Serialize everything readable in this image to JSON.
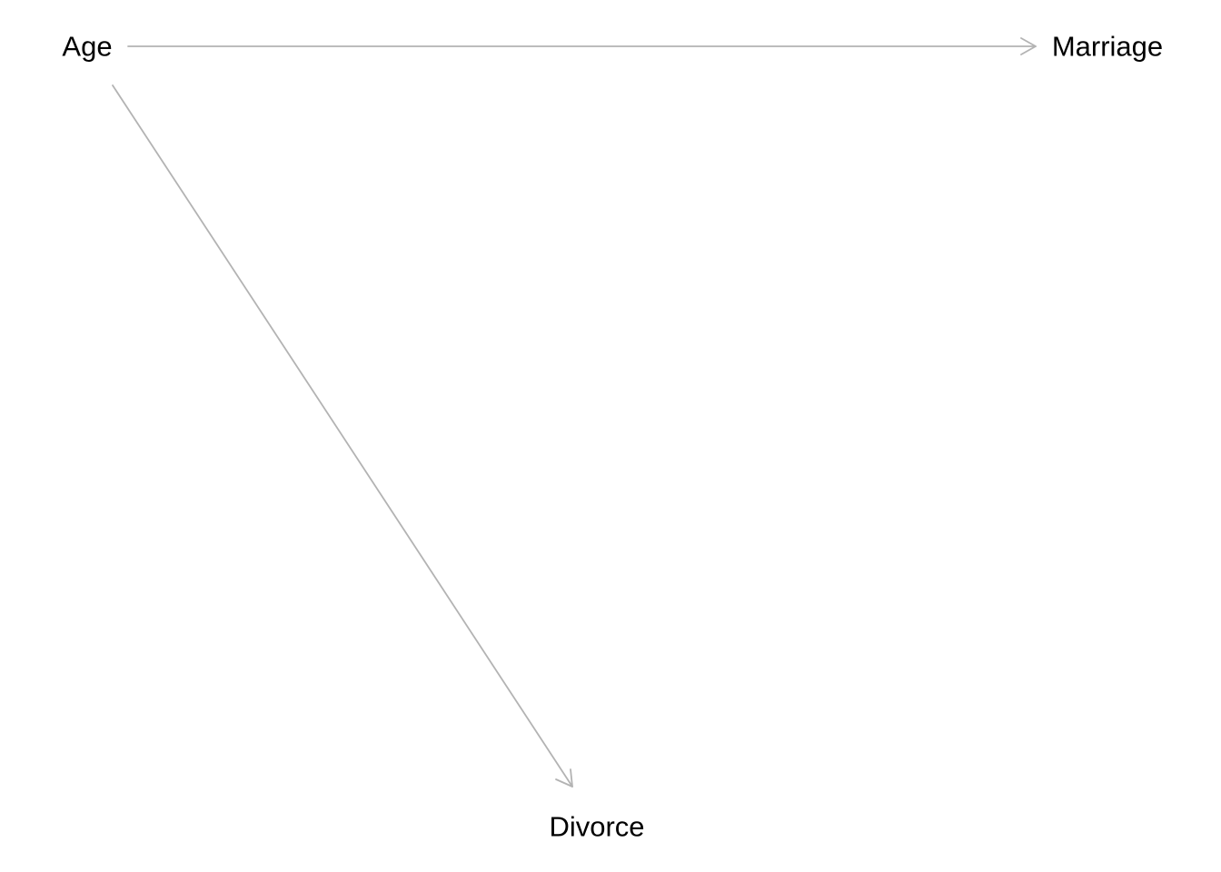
{
  "diagram": {
    "type": "directed-acyclic-graph",
    "edge_color": "#b3b3b3",
    "text_color": "#000000",
    "background": "#ffffff",
    "nodes": {
      "age": {
        "label": "Age"
      },
      "marriage": {
        "label": "Marriage"
      },
      "divorce": {
        "label": "Divorce"
      }
    },
    "edges": [
      {
        "from": "Age",
        "to": "Marriage"
      },
      {
        "from": "Age",
        "to": "Divorce"
      }
    ]
  }
}
